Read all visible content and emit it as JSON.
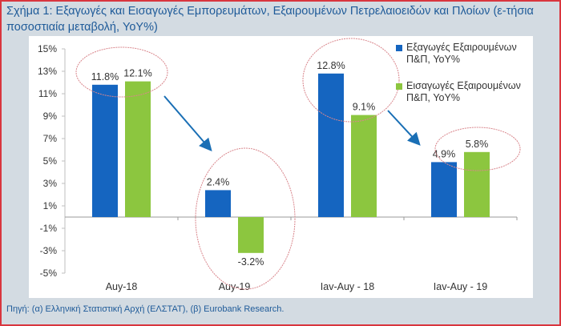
{
  "title": "Σχήμα 1:  Εξαγωγές και Εισαγωγές Εμπορευμάτων, Εξαιρουμένων Πετρελαιοειδών και Πλοίων (ε-τήσια ποσοστιαία μεταβολή, YoY%)",
  "source": "Πηγή: (α) Ελληνική Στατιστική Αρχή (ΕΛΣΤΑΤ), (β) Eurobank Research.",
  "colors": {
    "exports": "#1565c0",
    "imports": "#8cc63f",
    "highlight": "#d9868c",
    "arrow": "#1a6fb5"
  },
  "chart_data": {
    "type": "bar",
    "title": "Εξαγωγές και Εισαγωγές Εμπορευμάτων, Εξαιρουμένων Πετρελαιοειδών και Πλοίων (ετήσια ποσοστιαία μεταβολή, YoY%)",
    "categories": [
      "Auy-18",
      "Auy-19",
      "Iav-Auy - 18",
      "Iav-Auy - 19"
    ],
    "series": [
      {
        "name": "Εξαγωγές Εξαιρουμένων Π&Π, YoY%",
        "values": [
          11.8,
          2.4,
          12.8,
          4.9
        ],
        "labels": [
          "11.8%",
          "2.4%",
          "12.8%",
          "4.9%"
        ]
      },
      {
        "name": "Εισαγωγές Εξαιρουμένων Π&Π, YoY%",
        "values": [
          12.1,
          -3.2,
          9.1,
          5.8
        ],
        "labels": [
          "12.1%",
          "-3.2%",
          "9.1%",
          "5.8%"
        ]
      }
    ],
    "yticks": [
      15,
      13,
      11,
      9,
      7,
      5,
      3,
      1,
      -1,
      -3,
      -5
    ],
    "ytick_labels": [
      "15%",
      "13%",
      "11%",
      "9%",
      "7%",
      "5%",
      "3%",
      "1%",
      "-1%",
      "-3%",
      "-5%"
    ],
    "ylim": [
      -5,
      15
    ],
    "xlabel": "",
    "ylabel": "",
    "grid": false,
    "legend_position": "right",
    "legend": [
      {
        "line1": "Εξαγωγές Εξαιρουμένων",
        "line2": "Π&Π, YoY%"
      },
      {
        "line1": "Εισαγωγές Εξαιρουμένων",
        "line2": "Π&Π, YoY%"
      }
    ],
    "annotations": [
      "highlight ellipses around each category's bars",
      "downward arrows from Auy-18 to Auy-19 and from Iav-Auy - 18 to Iav-Auy - 19"
    ]
  }
}
